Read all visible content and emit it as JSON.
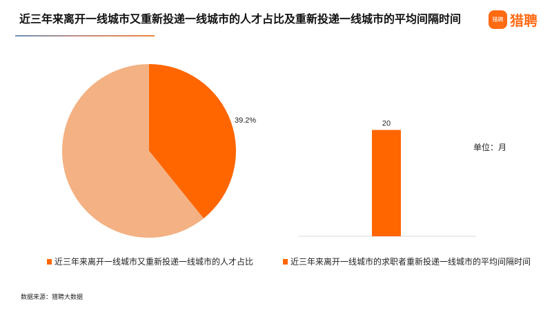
{
  "title": "近三年来离开一线城市又重新投递一线城市的人才占比及重新投递一线城市的平均间隔时间",
  "logo": {
    "icon_text": "猎聘",
    "text": "猎聘",
    "color": "#ff6a13"
  },
  "source": "数据来源：猎聘大数据",
  "chart_data": [
    {
      "type": "pie",
      "slices": [
        {
          "value": 39.2,
          "color": "#ff6600",
          "label": "39.2%"
        },
        {
          "value": 60.8,
          "color": "#f4b183"
        }
      ],
      "legend": "近三年来离开一线城市又重新投递一线城市的人才占比"
    },
    {
      "type": "bar",
      "categories": [
        ""
      ],
      "values": [
        20
      ],
      "data_labels": [
        "20"
      ],
      "color": "#ff6600",
      "ylim": [
        0,
        25
      ],
      "unit": "单位：月",
      "legend": "近三年来离开一线城市的求职者重新投递一线城市的平均间隔时间"
    }
  ]
}
